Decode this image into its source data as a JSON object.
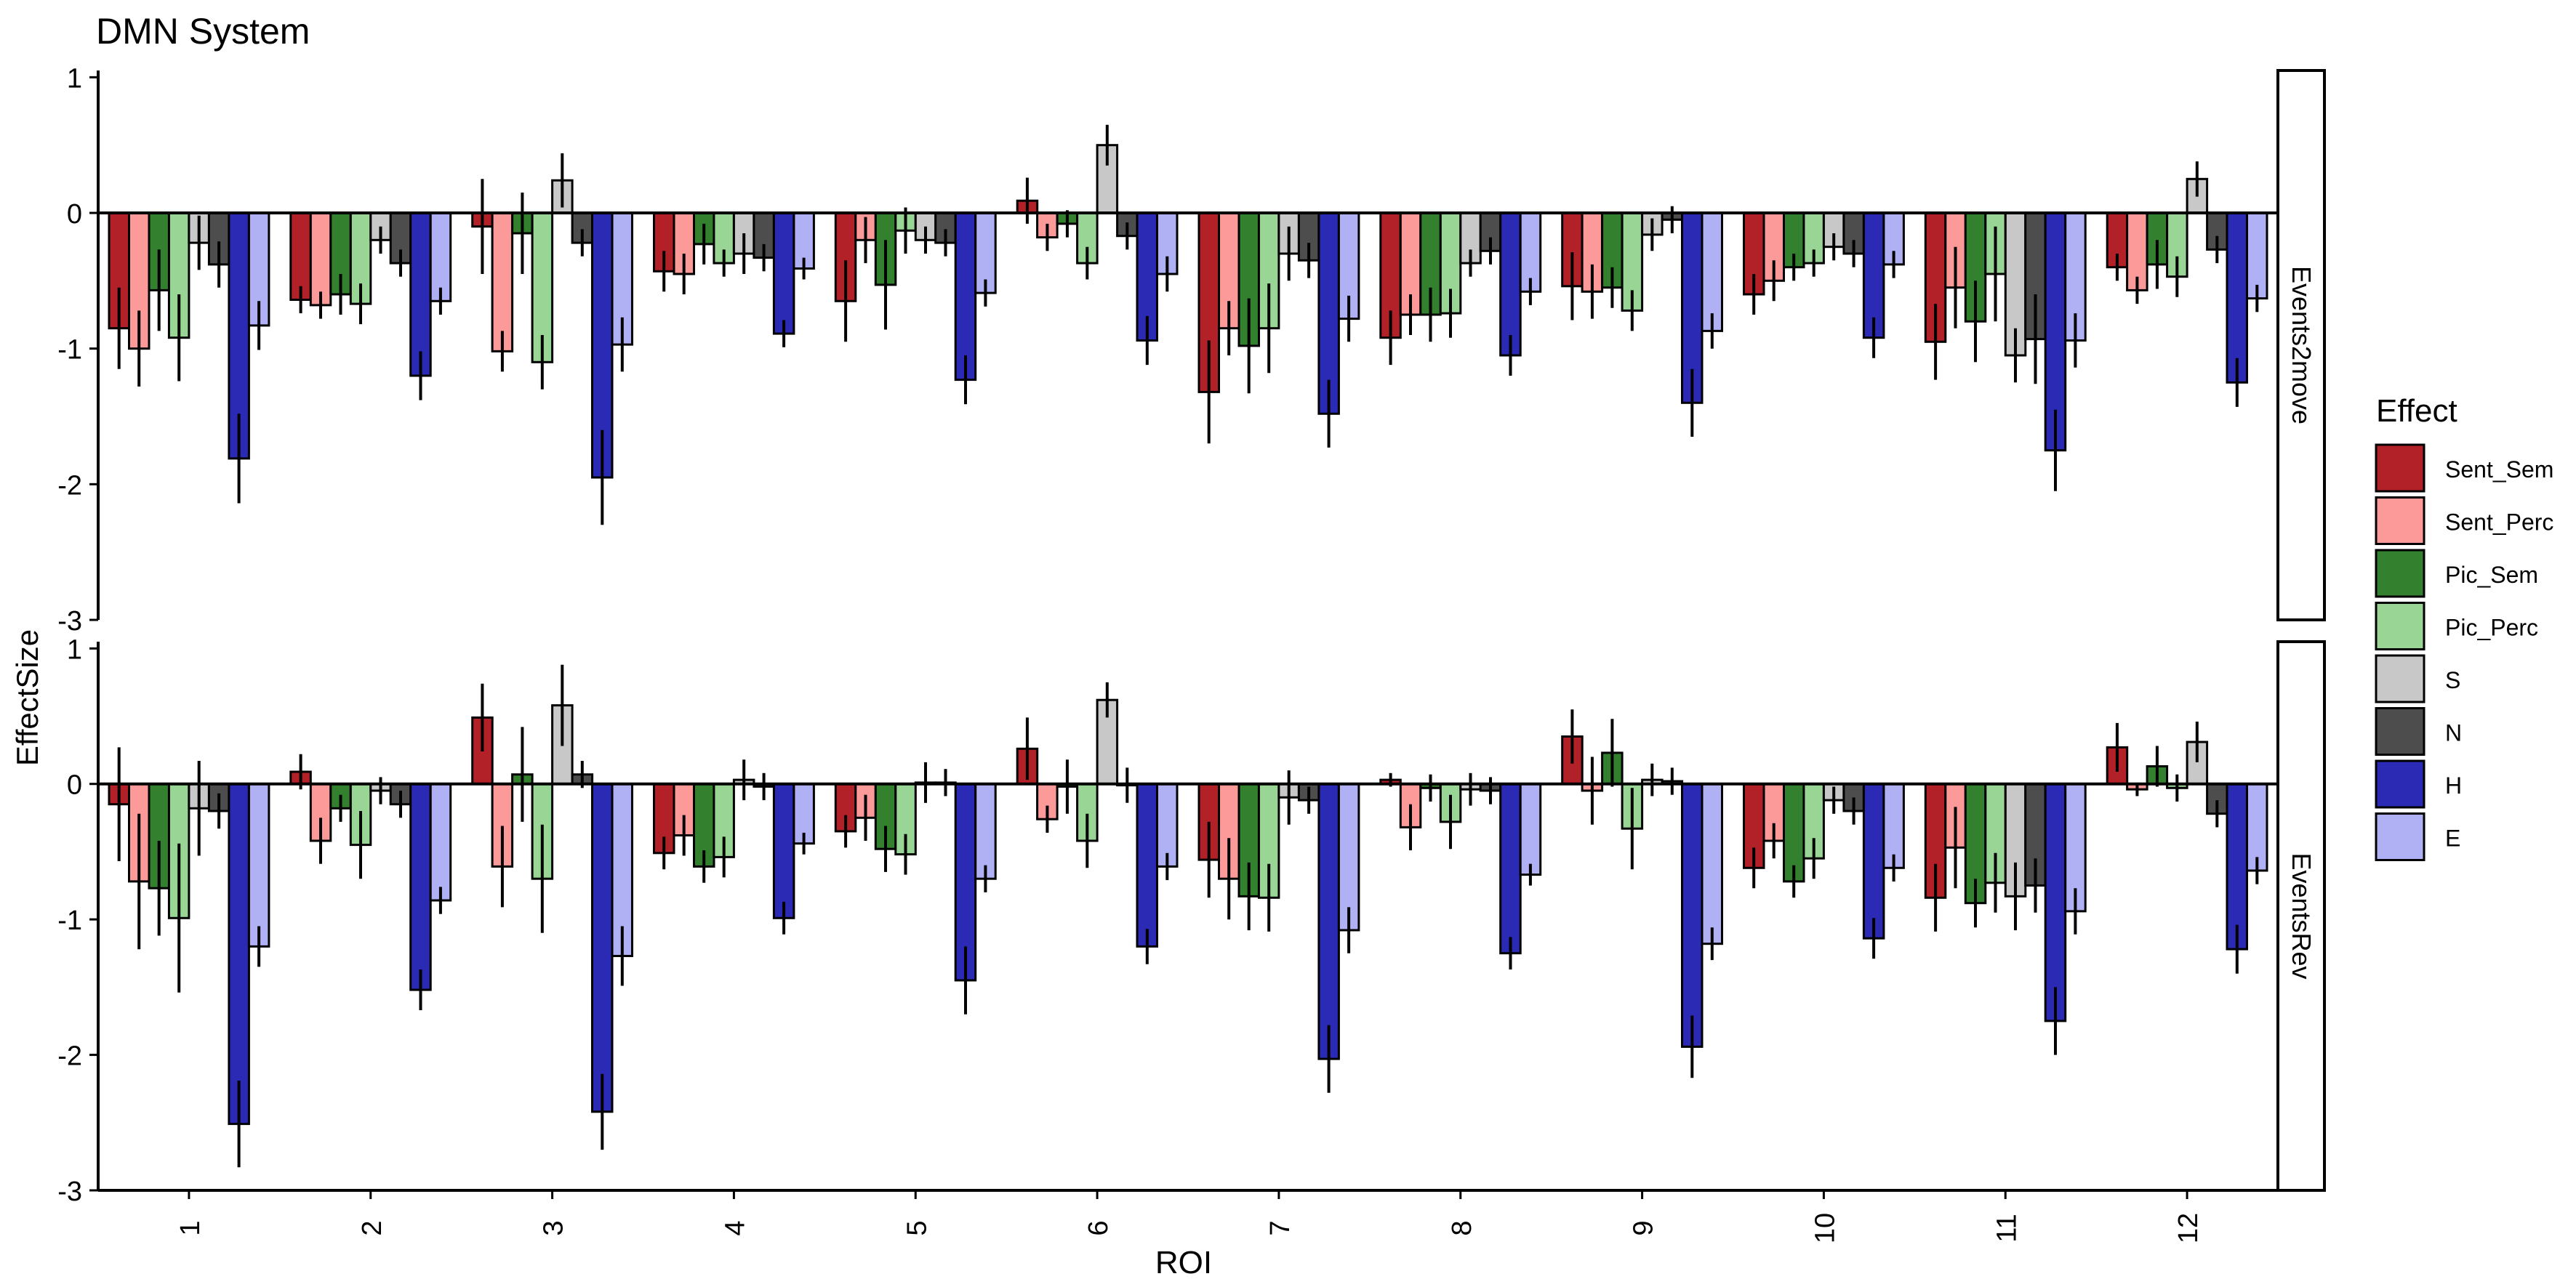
{
  "chart_data": {
    "type": "bar",
    "title": "DMN System",
    "xlabel": "ROI",
    "ylabel": "EffectSize",
    "categories": [
      "1",
      "2",
      "3",
      "4",
      "5",
      "6",
      "7",
      "8",
      "9",
      "10",
      "11",
      "12"
    ],
    "ylim": [
      -3,
      1.05
    ],
    "yticks": [
      "1",
      "0",
      "-1",
      "-2",
      "-3"
    ],
    "grid": false,
    "legend": {
      "title": "Effect",
      "position": "right",
      "items": [
        {
          "name": "Sent_Sem",
          "color": "#B22028"
        },
        {
          "name": "Sent_Perc",
          "color": "#FB9A99"
        },
        {
          "name": "Pic_Sem",
          "color": "#33802F"
        },
        {
          "name": "Pic_Perc",
          "color": "#99D594"
        },
        {
          "name": "S",
          "color": "#C8C8C8"
        },
        {
          "name": "N",
          "color": "#4D4D4D"
        },
        {
          "name": "H",
          "color": "#2A2AB4"
        },
        {
          "name": "E",
          "color": "#B0B0F5"
        }
      ]
    },
    "panels": [
      {
        "label": "Events2move",
        "series": [
          {
            "name": "Sent_Sem",
            "values": [
              -0.85,
              -0.64,
              -0.1,
              -0.43,
              -0.65,
              0.09,
              -1.32,
              -0.92,
              -0.54,
              -0.6,
              -0.95,
              -0.4
            ],
            "err": [
              0.3,
              0.1,
              0.35,
              0.15,
              0.3,
              0.17,
              0.38,
              0.2,
              0.25,
              0.15,
              0.28,
              0.1
            ]
          },
          {
            "name": "Sent_Perc",
            "values": [
              -1.0,
              -0.68,
              -1.02,
              -0.45,
              -0.2,
              -0.18,
              -0.85,
              -0.75,
              -0.58,
              -0.5,
              -0.55,
              -0.57
            ],
            "err": [
              0.28,
              0.1,
              0.15,
              0.15,
              0.17,
              0.1,
              0.2,
              0.15,
              0.2,
              0.15,
              0.3,
              0.1
            ]
          },
          {
            "name": "Pic_Sem",
            "values": [
              -0.57,
              -0.6,
              -0.15,
              -0.23,
              -0.53,
              -0.08,
              -0.98,
              -0.75,
              -0.55,
              -0.4,
              -0.8,
              -0.38
            ],
            "err": [
              0.3,
              0.15,
              0.3,
              0.15,
              0.33,
              0.1,
              0.35,
              0.2,
              0.15,
              0.1,
              0.3,
              0.18
            ]
          },
          {
            "name": "Pic_Perc",
            "values": [
              -0.92,
              -0.67,
              -1.1,
              -0.37,
              -0.13,
              -0.37,
              -0.85,
              -0.74,
              -0.72,
              -0.37,
              -0.45,
              -0.47
            ],
            "err": [
              0.32,
              0.15,
              0.2,
              0.1,
              0.17,
              0.12,
              0.33,
              0.18,
              0.15,
              0.1,
              0.35,
              0.15
            ]
          },
          {
            "name": "S",
            "values": [
              -0.22,
              -0.2,
              0.24,
              -0.3,
              -0.2,
              0.5,
              -0.3,
              -0.37,
              -0.16,
              -0.25,
              -1.05,
              0.25
            ],
            "err": [
              0.2,
              0.1,
              0.2,
              0.15,
              0.1,
              0.15,
              0.2,
              0.1,
              0.12,
              0.1,
              0.2,
              0.13
            ]
          },
          {
            "name": "N",
            "values": [
              -0.38,
              -0.37,
              -0.22,
              -0.33,
              -0.22,
              -0.17,
              -0.35,
              -0.28,
              -0.05,
              -0.3,
              -0.93,
              -0.27
            ],
            "err": [
              0.17,
              0.1,
              0.1,
              0.1,
              0.1,
              0.1,
              0.13,
              0.1,
              0.1,
              0.1,
              0.33,
              0.1
            ]
          },
          {
            "name": "H",
            "values": [
              -1.81,
              -1.2,
              -1.95,
              -0.89,
              -1.23,
              -0.94,
              -1.48,
              -1.05,
              -1.4,
              -0.92,
              -1.75,
              -1.25
            ],
            "err": [
              0.33,
              0.18,
              0.35,
              0.1,
              0.18,
              0.18,
              0.25,
              0.15,
              0.25,
              0.15,
              0.3,
              0.18
            ]
          },
          {
            "name": "E",
            "values": [
              -0.83,
              -0.65,
              -0.97,
              -0.41,
              -0.59,
              -0.45,
              -0.78,
              -0.58,
              -0.87,
              -0.38,
              -0.94,
              -0.63
            ],
            "err": [
              0.18,
              0.1,
              0.2,
              0.08,
              0.1,
              0.13,
              0.17,
              0.1,
              0.13,
              0.1,
              0.2,
              0.1
            ]
          }
        ]
      },
      {
        "label": "EventsRev",
        "series": [
          {
            "name": "Sent_Sem",
            "values": [
              -0.15,
              0.09,
              0.49,
              -0.51,
              -0.35,
              0.26,
              -0.56,
              0.03,
              0.35,
              -0.62,
              -0.84,
              0.27
            ],
            "err": [
              0.42,
              0.13,
              0.25,
              0.12,
              0.12,
              0.23,
              0.28,
              0.05,
              0.2,
              0.15,
              0.25,
              0.18
            ]
          },
          {
            "name": "Sent_Perc",
            "values": [
              -0.72,
              -0.42,
              -0.61,
              -0.38,
              -0.25,
              -0.26,
              -0.7,
              -0.32,
              -0.05,
              -0.42,
              -0.47,
              -0.04
            ],
            "err": [
              0.5,
              0.17,
              0.3,
              0.15,
              0.17,
              0.1,
              0.3,
              0.17,
              0.25,
              0.13,
              0.3,
              0.05
            ]
          },
          {
            "name": "Pic_Sem",
            "values": [
              -0.77,
              -0.18,
              0.07,
              -0.61,
              -0.48,
              -0.02,
              -0.83,
              -0.03,
              0.23,
              -0.72,
              -0.88,
              0.13
            ],
            "err": [
              0.35,
              0.1,
              0.35,
              0.12,
              0.17,
              0.2,
              0.25,
              0.1,
              0.25,
              0.12,
              0.18,
              0.15
            ]
          },
          {
            "name": "Pic_Perc",
            "values": [
              -0.99,
              -0.45,
              -0.7,
              -0.54,
              -0.52,
              -0.42,
              -0.84,
              -0.28,
              -0.33,
              -0.55,
              -0.73,
              -0.03
            ],
            "err": [
              0.55,
              0.25,
              0.4,
              0.15,
              0.15,
              0.2,
              0.25,
              0.2,
              0.3,
              0.15,
              0.22,
              0.1
            ]
          },
          {
            "name": "S",
            "values": [
              -0.18,
              -0.05,
              0.58,
              0.03,
              0.01,
              0.62,
              -0.1,
              -0.04,
              0.03,
              -0.12,
              -0.83,
              0.31
            ],
            "err": [
              0.35,
              0.1,
              0.3,
              0.15,
              0.15,
              0.13,
              0.2,
              0.12,
              0.12,
              0.1,
              0.25,
              0.15
            ]
          },
          {
            "name": "N",
            "values": [
              -0.2,
              -0.15,
              0.07,
              -0.02,
              0.01,
              -0.01,
              -0.12,
              -0.05,
              0.02,
              -0.2,
              -0.75,
              -0.22
            ],
            "err": [
              0.13,
              0.1,
              0.1,
              0.1,
              0.1,
              0.13,
              0.1,
              0.1,
              0.1,
              0.1,
              0.2,
              0.1
            ]
          },
          {
            "name": "H",
            "values": [
              -2.51,
              -1.52,
              -2.42,
              -0.99,
              -1.45,
              -1.2,
              -2.03,
              -1.25,
              -1.94,
              -1.14,
              -1.75,
              -1.22
            ],
            "err": [
              0.32,
              0.15,
              0.28,
              0.12,
              0.25,
              0.13,
              0.25,
              0.12,
              0.23,
              0.15,
              0.25,
              0.18
            ]
          },
          {
            "name": "E",
            "values": [
              -1.2,
              -0.86,
              -1.27,
              -0.44,
              -0.7,
              -0.61,
              -1.08,
              -0.67,
              -1.18,
              -0.62,
              -0.94,
              -0.64
            ],
            "err": [
              0.15,
              0.1,
              0.22,
              0.08,
              0.1,
              0.1,
              0.17,
              0.08,
              0.12,
              0.1,
              0.17,
              0.1
            ]
          }
        ]
      }
    ]
  }
}
